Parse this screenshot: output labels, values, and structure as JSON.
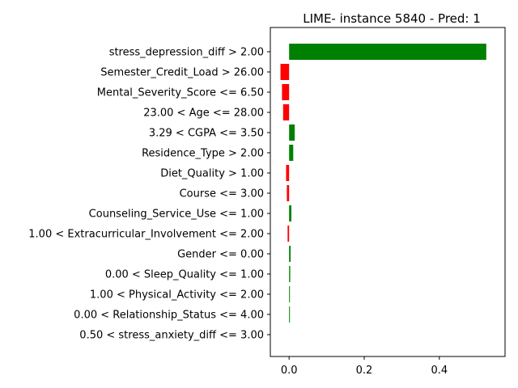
{
  "chart_data": {
    "type": "bar",
    "orientation": "horizontal",
    "title": "LIME- instance 5840 - Pred: 1",
    "xlabel": "",
    "ylabel": "",
    "categories": [
      "stress_depression_diff > 2.00",
      "Semester_Credit_Load > 26.00",
      "Mental_Severity_Score <= 6.50",
      "23.00 < Age <= 28.00",
      "3.29 < CGPA <= 3.50",
      "Residence_Type > 2.00",
      "Diet_Quality > 1.00",
      "Course <= 3.00",
      "Counseling_Service_Use <= 1.00",
      "1.00 < Extracurricular_Involvement <= 2.00",
      "Gender <= 0.00",
      "0.00 < Sleep_Quality <= 1.00",
      "1.00 < Physical_Activity <= 2.00",
      "0.00 < Relationship_Status <= 4.00",
      "0.50 < stress_anxiety_diff <= 3.00"
    ],
    "values": [
      0.525,
      -0.023,
      -0.019,
      -0.016,
      0.015,
      0.011,
      -0.008,
      -0.006,
      0.006,
      -0.004,
      0.004,
      0.003,
      0.002,
      0.002,
      0.0
    ],
    "xlim": [
      -0.05,
      0.575
    ],
    "xticks": [
      0.0,
      0.2,
      0.4
    ],
    "xtick_labels": [
      "0.0",
      "0.2",
      "0.4"
    ],
    "colors": {
      "positive": "#008000",
      "negative": "#ff0000"
    },
    "grid": false,
    "legend": "none"
  }
}
